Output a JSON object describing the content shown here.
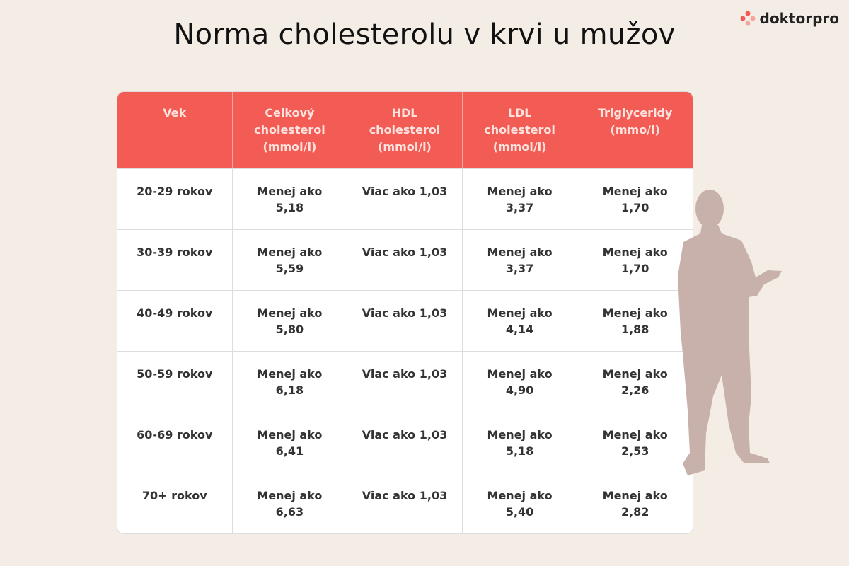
{
  "header": {
    "title": "Norma cholesterolu v krvi u mužov",
    "logo": "doktorpro"
  },
  "table": {
    "columns": [
      "Vek",
      "Celkový\ncholesterol\n(mmol/l)",
      "HDL\ncholesterol\n(mmol/l)",
      "LDL\ncholesterol\n(mmol/l)",
      "Triglyceridy\n(mmo/l)"
    ],
    "rows": [
      [
        "20-29 rokov",
        "Menej ako\n5,18",
        "Viac ako 1,03",
        "Menej ako\n3,37",
        "Menej ako\n1,70"
      ],
      [
        "30-39 rokov",
        "Menej ako\n5,59",
        "Viac ako 1,03",
        "Menej ako\n3,37",
        "Menej ako\n1,70"
      ],
      [
        "40-49 rokov",
        "Menej ako\n5,80",
        "Viac ako 1,03",
        "Menej ako\n4,14",
        "Menej ako\n1,88"
      ],
      [
        "50-59 rokov",
        "Menej ako\n6,18",
        "Viac ako 1,03",
        "Menej ako\n4,90",
        "Menej ako\n2,26"
      ],
      [
        "60-69 rokov",
        "Menej ako\n6,41",
        "Viac ako 1,03",
        "Menej ako\n5,18",
        "Menej ako\n2,53"
      ],
      [
        "70+ rokov",
        "Menej ako\n6,63",
        "Viac ako 1,03",
        "Menej ako\n5,40",
        "Menej ako\n2,82"
      ]
    ]
  }
}
